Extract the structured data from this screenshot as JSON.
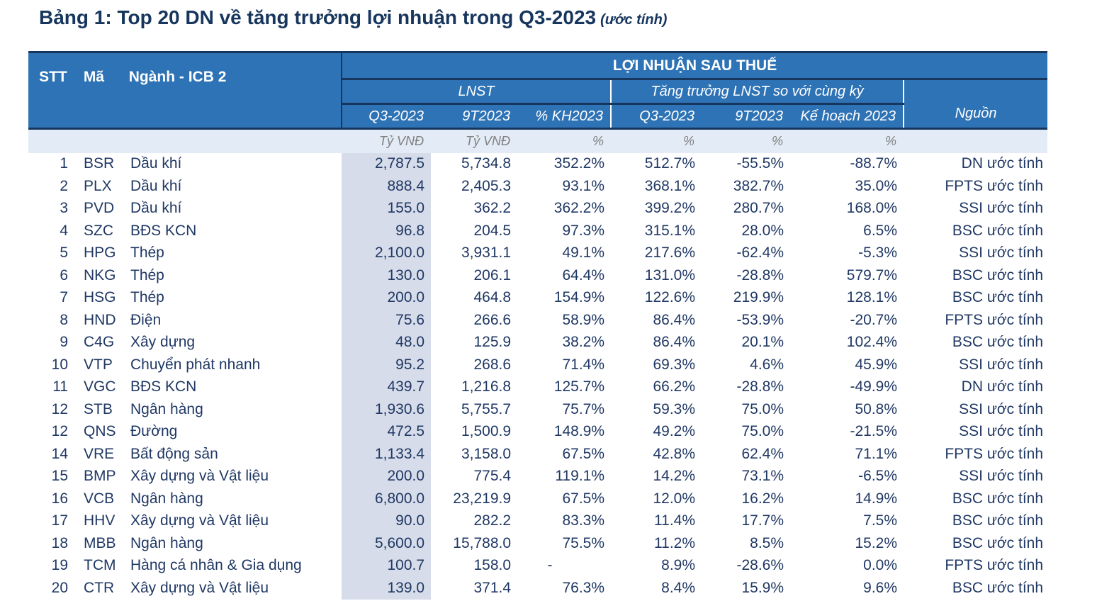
{
  "title": {
    "main": "Bảng 1: Top 20 DN về tăng trưởng lợi nhuận trong Q3-2023",
    "suffix": "(ước tính)"
  },
  "colors": {
    "header_blue": "#2E73B5",
    "dark_navy_line": "#17365D",
    "text_navy": "#203864",
    "negative_red": "#B93C37",
    "q3_column_shade": "#D6DCE9",
    "units_row_bg": "#E2EBF6",
    "units_text_gray": "#808080"
  },
  "table": {
    "header": {
      "stt": "STT",
      "ma": "Mã",
      "nganh": "Ngành - ICB 2",
      "group": "LỢI NHUẬN SAU THUẾ",
      "lnst_group": "LNST",
      "growth_group": "Tăng trưởng LNST so với cùng kỳ",
      "source": "Nguồn",
      "cols": [
        "Q3-2023",
        "9T2023",
        "% KH2023",
        "Q3-2023",
        "9T2023",
        "Kế hoạch 2023"
      ],
      "units": [
        "Tỷ VNĐ",
        "Tỷ VNĐ",
        "%",
        "%",
        "%",
        "%"
      ]
    },
    "rows": [
      {
        "stt": "1",
        "ma": "BSR",
        "nganh": "Dầu khí",
        "lnst_q3": "2,787.5",
        "lnst_9t": "5,734.8",
        "pct_kh": "352.2%",
        "g_q3": "512.7%",
        "g_9t": "-55.5%",
        "g_kh": "-88.7%",
        "nguon": "DN ước tính"
      },
      {
        "stt": "2",
        "ma": "PLX",
        "nganh": "Dầu khí",
        "lnst_q3": "888.4",
        "lnst_9t": "2,405.3",
        "pct_kh": "93.1%",
        "g_q3": "368.1%",
        "g_9t": "382.7%",
        "g_kh": "35.0%",
        "nguon": "FPTS ước tính"
      },
      {
        "stt": "3",
        "ma": "PVD",
        "nganh": "Dầu khí",
        "lnst_q3": "155.0",
        "lnst_9t": "362.2",
        "pct_kh": "362.2%",
        "g_q3": "399.2%",
        "g_9t": "280.7%",
        "g_kh": "168.0%",
        "nguon": "SSI ước tính"
      },
      {
        "stt": "4",
        "ma": "SZC",
        "nganh": "BĐS KCN",
        "lnst_q3": "96.8",
        "lnst_9t": "204.5",
        "pct_kh": "97.3%",
        "g_q3": "315.1%",
        "g_9t": "28.0%",
        "g_kh": "6.5%",
        "nguon": "BSC ước tính"
      },
      {
        "stt": "5",
        "ma": "HPG",
        "nganh": "Thép",
        "lnst_q3": "2,100.0",
        "lnst_9t": "3,931.1",
        "pct_kh": "49.1%",
        "g_q3": "217.6%",
        "g_9t": "-62.4%",
        "g_kh": "-5.3%",
        "nguon": "SSI ước tính"
      },
      {
        "stt": "6",
        "ma": "NKG",
        "nganh": "Thép",
        "lnst_q3": "130.0",
        "lnst_9t": "206.1",
        "pct_kh": "64.4%",
        "g_q3": "131.0%",
        "g_9t": "-28.8%",
        "g_kh": "579.7%",
        "nguon": "BSC ước tính"
      },
      {
        "stt": "7",
        "ma": "HSG",
        "nganh": "Thép",
        "lnst_q3": "200.0",
        "lnst_9t": "464.8",
        "pct_kh": "154.9%",
        "g_q3": "122.6%",
        "g_9t": "219.9%",
        "g_kh": "128.1%",
        "nguon": "BSC ước tính"
      },
      {
        "stt": "8",
        "ma": "HND",
        "nganh": "Điện",
        "lnst_q3": "75.6",
        "lnst_9t": "266.6",
        "pct_kh": "58.9%",
        "g_q3": "86.4%",
        "g_9t": "-53.9%",
        "g_kh": "-20.7%",
        "nguon": "FPTS ước tính"
      },
      {
        "stt": "9",
        "ma": "C4G",
        "nganh": "Xây dựng",
        "lnst_q3": "48.0",
        "lnst_9t": "125.9",
        "pct_kh": "38.2%",
        "g_q3": "86.4%",
        "g_9t": "20.1%",
        "g_kh": "102.4%",
        "nguon": "BSC ước tính"
      },
      {
        "stt": "10",
        "ma": "VTP",
        "nganh": "Chuyển phát nhanh",
        "lnst_q3": "95.2",
        "lnst_9t": "268.6",
        "pct_kh": "71.4%",
        "g_q3": "69.3%",
        "g_9t": "4.6%",
        "g_kh": "45.9%",
        "nguon": "SSI ước tính"
      },
      {
        "stt": "11",
        "ma": "VGC",
        "nganh": "BĐS KCN",
        "lnst_q3": "439.7",
        "lnst_9t": "1,216.8",
        "pct_kh": "125.7%",
        "g_q3": "66.2%",
        "g_9t": "-28.8%",
        "g_kh": "-49.9%",
        "nguon": "DN ước tính"
      },
      {
        "stt": "12",
        "ma": "STB",
        "nganh": "Ngân hàng",
        "lnst_q3": "1,930.6",
        "lnst_9t": "5,755.7",
        "pct_kh": "75.7%",
        "g_q3": "59.3%",
        "g_9t": "75.0%",
        "g_kh": "50.8%",
        "nguon": "SSI ước tính"
      },
      {
        "stt": "12",
        "ma": "QNS",
        "nganh": "Đường",
        "lnst_q3": "472.5",
        "lnst_9t": "1,500.9",
        "pct_kh": "148.9%",
        "g_q3": "49.2%",
        "g_9t": "75.0%",
        "g_kh": "-21.5%",
        "nguon": "SSI ước tính"
      },
      {
        "stt": "14",
        "ma": "VRE",
        "nganh": "Bất động sản",
        "lnst_q3": "1,133.4",
        "lnst_9t": "3,158.0",
        "pct_kh": "67.5%",
        "g_q3": "42.8%",
        "g_9t": "62.4%",
        "g_kh": "71.1%",
        "nguon": "FPTS ước tính"
      },
      {
        "stt": "15",
        "ma": "BMP",
        "nganh": "Xây dựng và Vật liệu",
        "lnst_q3": "200.0",
        "lnst_9t": "775.4",
        "pct_kh": "119.1%",
        "g_q3": "14.2%",
        "g_9t": "73.1%",
        "g_kh": "-6.5%",
        "nguon": "SSI ước tính"
      },
      {
        "stt": "16",
        "ma": "VCB",
        "nganh": "Ngân hàng",
        "lnst_q3": "6,800.0",
        "lnst_9t": "23,219.9",
        "pct_kh": "67.5%",
        "g_q3": "12.0%",
        "g_9t": "16.2%",
        "g_kh": "14.9%",
        "nguon": "BSC ước tính"
      },
      {
        "stt": "17",
        "ma": "HHV",
        "nganh": "Xây dựng và Vật liệu",
        "lnst_q3": "90.0",
        "lnst_9t": "282.2",
        "pct_kh": "83.3%",
        "g_q3": "11.4%",
        "g_9t": "17.7%",
        "g_kh": "7.5%",
        "nguon": "BSC ước tính"
      },
      {
        "stt": "18",
        "ma": "MBB",
        "nganh": "Ngân hàng",
        "lnst_q3": "5,600.0",
        "lnst_9t": "15,788.0",
        "pct_kh": "75.5%",
        "g_q3": "11.2%",
        "g_9t": "8.5%",
        "g_kh": "15.2%",
        "nguon": "BSC ước tính"
      },
      {
        "stt": "19",
        "ma": "TCM",
        "nganh": "Hàng cá nhân & Gia dụng",
        "lnst_q3": "100.7",
        "lnst_9t": "158.0",
        "pct_kh": "-",
        "g_q3": "8.9%",
        "g_9t": "-28.6%",
        "g_kh": "0.0%",
        "nguon": "FPTS ước tính"
      },
      {
        "stt": "20",
        "ma": "CTR",
        "nganh": "Xây dựng và Vật liệu",
        "lnst_q3": "139.0",
        "lnst_9t": "371.4",
        "pct_kh": "76.3%",
        "g_q3": "8.4%",
        "g_9t": "15.9%",
        "g_kh": "9.6%",
        "nguon": "BSC ước tính"
      }
    ]
  }
}
